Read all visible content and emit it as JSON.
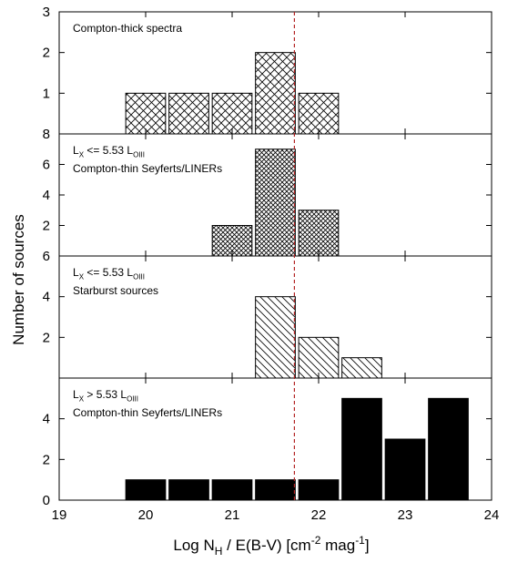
{
  "figure": {
    "xlabel": "Log N_H / E(B-V) [cm^-2 mag^-1]",
    "ylabel": "Number of sources",
    "vline_x": 21.72
  },
  "chart_data": [
    {
      "type": "bar",
      "label_lines": [
        "Compton-thick spectra"
      ],
      "x": [
        20.0,
        20.5,
        21.0,
        21.5,
        22.0
      ],
      "values": [
        1,
        1,
        1,
        2,
        1
      ],
      "pattern": "crosshatch",
      "ylim": [
        0,
        3
      ],
      "yticks": [
        1,
        2,
        3
      ],
      "xlim": [
        19,
        24
      ]
    },
    {
      "type": "bar",
      "label_lines": [
        "L_X <= 5.53 L_[O_III]",
        "Compton-thin Seyferts/LINERs"
      ],
      "x": [
        21.0,
        21.5,
        22.0
      ],
      "values": [
        2,
        7,
        3
      ],
      "pattern": "finecross",
      "ylim": [
        0,
        8
      ],
      "yticks": [
        2,
        4,
        6,
        8
      ],
      "xlim": [
        19,
        24
      ]
    },
    {
      "type": "bar",
      "label_lines": [
        "L_X <= 5.53 L_[O_III]",
        "Starburst sources"
      ],
      "x": [
        21.5,
        22.0,
        22.5
      ],
      "values": [
        4,
        2,
        1
      ],
      "pattern": "diagonal",
      "ylim": [
        0,
        6
      ],
      "yticks": [
        2,
        4,
        6
      ],
      "xlim": [
        19,
        24
      ]
    },
    {
      "type": "bar",
      "label_lines": [
        "L_X > 5.53 L_[O_III]",
        "Compton-thin Seyferts/LINERs"
      ],
      "x": [
        20.0,
        20.5,
        21.0,
        21.5,
        22.0,
        22.5,
        23.0,
        23.5
      ],
      "values": [
        1,
        1,
        1,
        1,
        1,
        5,
        3,
        5
      ],
      "pattern": "solid",
      "ylim": [
        0,
        6
      ],
      "yticks": [
        0,
        2,
        4
      ],
      "xticks": [
        19,
        20,
        21,
        22,
        23,
        24
      ],
      "xlim": [
        19,
        24
      ]
    }
  ]
}
